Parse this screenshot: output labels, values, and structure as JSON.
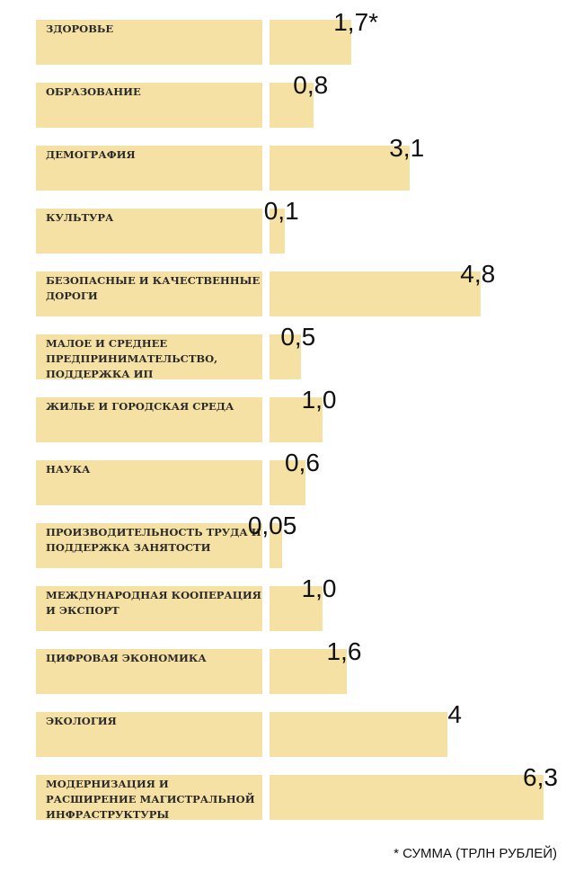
{
  "chart_data": {
    "type": "bar",
    "orientation": "horizontal",
    "categories": [
      "ЗДОРОВЬЕ",
      "ОБРАЗОВАНИЕ",
      "ДЕМОГРАФИЯ",
      "КУЛЬТУРА",
      "БЕЗОПАСНЫЕ И КАЧЕСТВЕННЫЕ ДОРОГИ",
      "МАЛОЕ И СРЕДНЕЕ ПРЕДПРИНИМАТЕЛЬСТВО, ПОДДЕРЖКА ИП",
      "ЖИЛЬЕ И ГОРОДСКАЯ СРЕДА",
      "НАУКА",
      "ПРОИЗВОДИТЕЛЬНОСТЬ ТРУДА И ПОДДЕРЖКА ЗАНЯТОСТИ",
      "МЕЖДУНАРОДНАЯ КООПЕРАЦИЯ И ЭКСПОРТ",
      "ЦИФРОВАЯ ЭКОНОМИКА",
      "ЭКОЛОГИЯ",
      "МОДЕРНИЗАЦИЯ И РАСШИРЕНИЕ МАГИСТРАЛЬНОЙ ИНФРАСТРУКТУРЫ"
    ],
    "values": [
      1.7,
      0.8,
      3.1,
      0.1,
      4.8,
      0.5,
      1.0,
      0.6,
      0.05,
      1.0,
      1.6,
      4,
      6.3
    ],
    "value_labels": [
      "1,7*",
      "0,8",
      "3,1",
      "0,1",
      "4,8",
      "0,5",
      "1,0",
      "0,6",
      "0,05",
      "1,0",
      "1,6",
      "4",
      "6,3"
    ],
    "footnote": "* СУММА (ТРЛН РУБЛЕЙ)",
    "xlim": [
      0,
      6.3
    ],
    "grid": false,
    "colors": {
      "bar": "#f6e1a4",
      "text": "#111111"
    }
  }
}
